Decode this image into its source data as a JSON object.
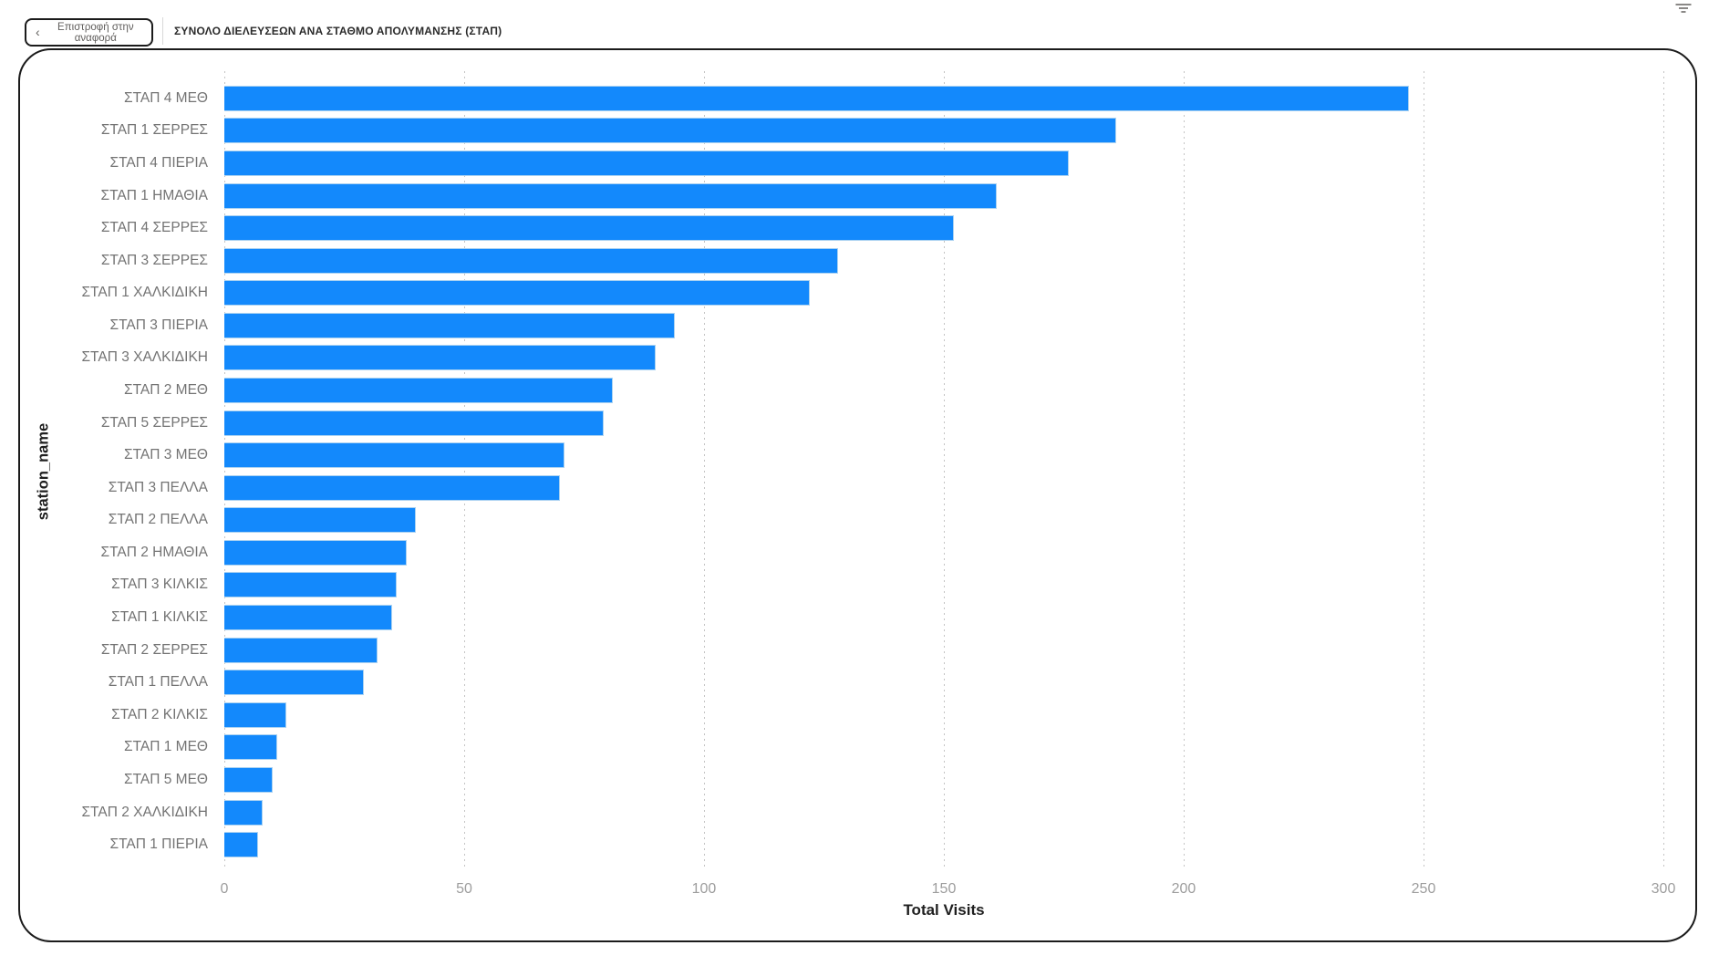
{
  "header": {
    "back_button": {
      "chevron": "‹",
      "label": "Επιστροφή στην αναφορά"
    },
    "title": "ΣΥΝΟΛΟ ΔΙΕΛΕΥΣΕΩΝ ΑΝΑ ΣΤΑΘΜΟ ΑΠΟΛΥΜΑΝΣΗΣ (ΣΤΑΠ)",
    "filter_icon": "filter-funnel-icon"
  },
  "colors": {
    "bar_fill": "#1389fc",
    "bar_edge": "#abd2f1",
    "category_label": "#737373",
    "tick_label": "#9d9d9d",
    "axis_label": "#1f1f1f",
    "card_border": "#1b1b1b"
  },
  "chart_data": {
    "type": "bar",
    "orientation": "horizontal",
    "xlabel": "Total Visits",
    "ylabel": "station_name",
    "xlim": [
      0,
      300
    ],
    "xticks": [
      0,
      50,
      100,
      150,
      200,
      250,
      300
    ],
    "grid": "vertical-dotted",
    "legend": "none",
    "categories": [
      "ΣΤΑΠ 4 ΜΕΘ",
      "ΣΤΑΠ 1 ΣΕΡΡΕΣ",
      "ΣΤΑΠ 4 ΠΙΕΡΙΑ",
      "ΣΤΑΠ 1 ΗΜΑΘΙΑ",
      "ΣΤΑΠ 4 ΣΕΡΡΕΣ",
      "ΣΤΑΠ 3 ΣΕΡΡΕΣ",
      "ΣΤΑΠ 1 ΧΑΛΚΙΔΙΚΗ",
      "ΣΤΑΠ 3 ΠΙΕΡΙΑ",
      "ΣΤΑΠ 3 ΧΑΛΚΙΔΙΚΗ",
      "ΣΤΑΠ 2 ΜΕΘ",
      "ΣΤΑΠ 5 ΣΕΡΡΕΣ",
      "ΣΤΑΠ 3 ΜΕΘ",
      "ΣΤΑΠ 3 ΠΕΛΛΑ",
      "ΣΤΑΠ 2 ΠΕΛΛΑ",
      "ΣΤΑΠ 2 ΗΜΑΘΙΑ",
      "ΣΤΑΠ 3 ΚΙΛΚΙΣ",
      "ΣΤΑΠ 1 ΚΙΛΚΙΣ",
      "ΣΤΑΠ 2 ΣΕΡΡΕΣ",
      "ΣΤΑΠ 1 ΠΕΛΛΑ",
      "ΣΤΑΠ 2 ΚΙΛΚΙΣ",
      "ΣΤΑΠ 1 ΜΕΘ",
      "ΣΤΑΠ 5 ΜΕΘ",
      "ΣΤΑΠ 2 ΧΑΛΚΙΔΙΚΗ",
      "ΣΤΑΠ 1 ΠΙΕΡΙΑ"
    ],
    "values": [
      247,
      186,
      176,
      161,
      152,
      128,
      122,
      94,
      90,
      81,
      79,
      71,
      70,
      40,
      38,
      36,
      35,
      32,
      29,
      13,
      11,
      10,
      8,
      7
    ]
  }
}
